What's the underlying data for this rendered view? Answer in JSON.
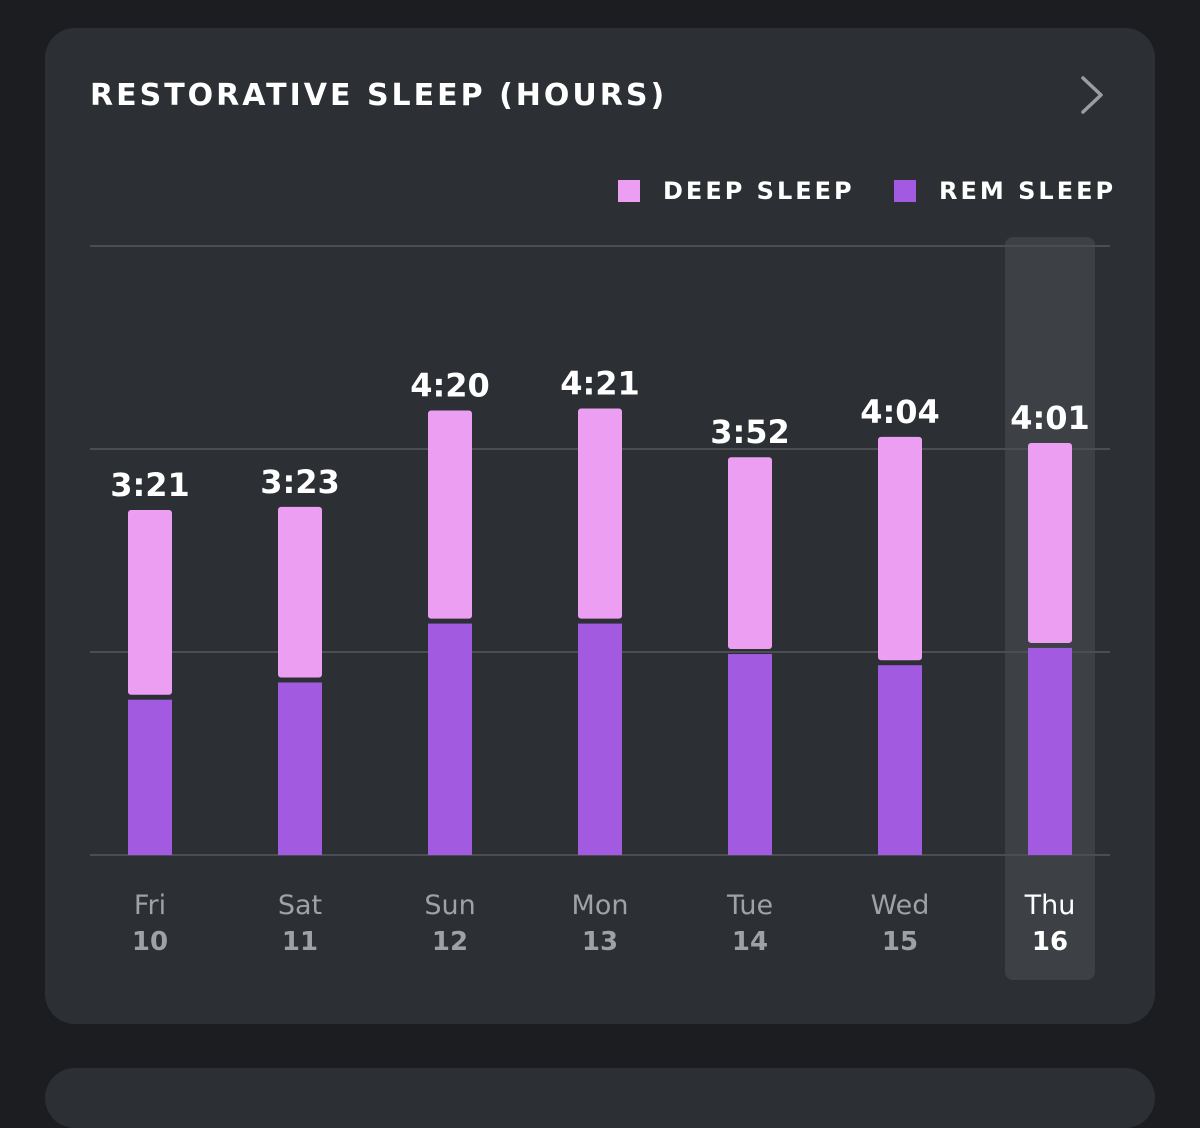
{
  "header": {
    "title": "RESTORATIVE SLEEP (HOURS)"
  },
  "legend": {
    "deep_label": "DEEP SLEEP",
    "rem_label": "REM SLEEP"
  },
  "colors": {
    "deep": "#ec9ff2",
    "rem": "#a25ae0",
    "card": "#2c2f33",
    "grid": "#4a4d52",
    "selected_band": "#3d4044"
  },
  "chart_data": {
    "type": "bar",
    "stacked": true,
    "categories": [
      "Fri 10",
      "Sat 11",
      "Sun 12",
      "Mon 13",
      "Tue 14",
      "Wed 15",
      "Thu 16"
    ],
    "day_names": [
      "Fri",
      "Sat",
      "Sun",
      "Mon",
      "Tue",
      "Wed",
      "Thu"
    ],
    "day_numbers": [
      "10",
      "11",
      "12",
      "13",
      "14",
      "15",
      "16"
    ],
    "totals": [
      "3:21",
      "3:23",
      "4:20",
      "4:21",
      "3:52",
      "4:04",
      "4:01"
    ],
    "series": [
      {
        "name": "REM SLEEP",
        "values": [
          1.53,
          1.7,
          2.28,
          2.28,
          1.98,
          1.87,
          2.04
        ]
      },
      {
        "name": "DEEP SLEEP",
        "values": [
          1.82,
          1.68,
          2.05,
          2.07,
          1.89,
          2.2,
          1.97
        ]
      }
    ],
    "ylim": [
      0,
      6
    ],
    "grid_lines": [
      2,
      4,
      6
    ],
    "grid": true,
    "legend_position": "top-right",
    "selected_index": 6
  }
}
